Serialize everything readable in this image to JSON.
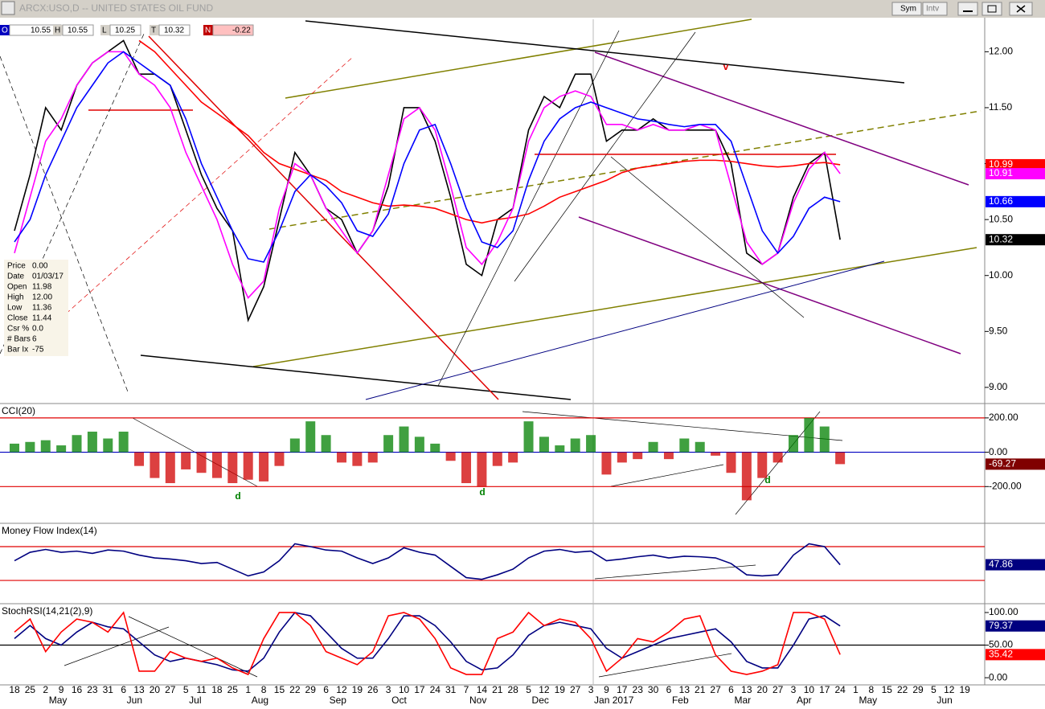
{
  "window": {
    "buttons": [
      "Sym",
      "Intv"
    ]
  },
  "quote": [
    [
      "O",
      "10.55"
    ],
    [
      "H",
      "10.55"
    ],
    [
      "L",
      "10.25"
    ],
    [
      "T",
      "10.32"
    ],
    [
      "N",
      "-0.22"
    ]
  ],
  "data_window": [
    [
      "Price",
      "0.00"
    ],
    [
      "Date",
      "01/03/17"
    ],
    [
      "Open",
      "11.98"
    ],
    [
      "High",
      "12.00"
    ],
    [
      "Low",
      "11.36"
    ],
    [
      "Close",
      "11.44"
    ],
    [
      "Csr %",
      "0.0"
    ],
    [
      "# Bars",
      "6"
    ],
    [
      "Bar Ix",
      "-75"
    ]
  ],
  "chart_data": [
    {
      "type": "line",
      "title": "ARCX:USO,D -- UNITED STATES OIL FUND",
      "categories": [
        "18",
        "25",
        "2",
        "9",
        "16",
        "23",
        "31",
        "6",
        "13",
        "20",
        "27",
        "5",
        "11",
        "18",
        "25",
        "1",
        "8",
        "15",
        "22",
        "29",
        "6",
        "12",
        "19",
        "26",
        "3",
        "10",
        "17",
        "24",
        "31",
        "7",
        "14",
        "21",
        "28",
        "5",
        "12",
        "19",
        "27",
        "3",
        "9",
        "17",
        "23",
        "30",
        "6",
        "13",
        "21",
        "27",
        "6",
        "13",
        "20",
        "27",
        "3",
        "10",
        "17",
        "24",
        "1",
        "8",
        "15",
        "22",
        "29",
        "5",
        "12",
        "19"
      ],
      "month_labels": [
        null,
        null,
        "May",
        null,
        null,
        null,
        null,
        "Jun",
        null,
        null,
        null,
        "Jul",
        null,
        null,
        null,
        "Aug",
        null,
        null,
        null,
        null,
        "Sep",
        null,
        null,
        null,
        "Oct",
        null,
        null,
        null,
        null,
        "Nov",
        null,
        null,
        null,
        "Dec",
        null,
        null,
        null,
        "Jan 2017",
        null,
        null,
        null,
        null,
        "Feb",
        null,
        null,
        null,
        "Mar",
        null,
        null,
        null,
        "Apr",
        null,
        null,
        null,
        "May",
        null,
        null,
        null,
        null,
        "Jun",
        null,
        null
      ],
      "ylim": [
        8.87,
        12.29
      ],
      "yticks": [
        {
          "value": 12,
          "label": "12.00"
        },
        {
          "value": 11.5,
          "label": "11.50"
        },
        {
          "value": 11,
          "label": "11.00"
        },
        {
          "value": 10.5,
          "label": "10.50"
        },
        {
          "value": 10,
          "label": "10.00"
        },
        {
          "value": 9.5,
          "label": "9.50"
        },
        {
          "value": 9,
          "label": "9.00"
        }
      ],
      "annotations": [
        "v"
      ],
      "series": [
        {
          "color": "#000000",
          "values": [
            10.4,
            10.9,
            11.5,
            11.3,
            11.7,
            11.9,
            12.0,
            12.1,
            11.8,
            11.8,
            11.7,
            11.3,
            10.9,
            10.6,
            10.4,
            9.6,
            9.9,
            10.5,
            11.1,
            10.9,
            10.6,
            10.5,
            10.2,
            10.4,
            10.8,
            11.5,
            11.5,
            11.2,
            10.7,
            10.1,
            10.0,
            10.5,
            10.6,
            11.3,
            11.6,
            11.5,
            11.8,
            11.8,
            11.2,
            11.3,
            11.3,
            11.4,
            11.3,
            11.3,
            11.3,
            11.3,
            11.0,
            10.2,
            10.1,
            10.2,
            10.7,
            11.0,
            11.1,
            10.32,
            null,
            null,
            null,
            null,
            null,
            null,
            null,
            null
          ]
        },
        {
          "color": "#ff0000",
          "values": [
            null,
            null,
            null,
            null,
            null,
            null,
            null,
            null,
            12.1,
            12.0,
            11.85,
            11.7,
            11.55,
            11.45,
            11.35,
            11.25,
            11.1,
            11.0,
            10.95,
            10.9,
            10.85,
            10.75,
            10.7,
            10.65,
            10.62,
            10.63,
            10.62,
            10.6,
            10.55,
            10.5,
            10.47,
            10.5,
            10.52,
            10.55,
            10.62,
            10.7,
            10.75,
            10.8,
            10.85,
            10.92,
            10.96,
            10.98,
            11.0,
            11.02,
            11.03,
            11.03,
            11.02,
            11.0,
            10.98,
            10.97,
            10.98,
            11.0,
            11.01,
            10.99,
            null,
            null,
            null,
            null,
            null,
            null,
            null,
            null
          ]
        },
        {
          "color": "#ff00ff",
          "values": [
            10.2,
            10.7,
            11.2,
            11.4,
            11.7,
            11.9,
            12.0,
            12.0,
            11.8,
            11.7,
            11.5,
            11.1,
            10.8,
            10.5,
            10.1,
            9.8,
            9.95,
            10.6,
            11.0,
            10.9,
            10.6,
            10.4,
            10.2,
            10.4,
            10.9,
            11.4,
            11.5,
            11.3,
            10.8,
            10.25,
            10.1,
            10.3,
            10.6,
            11.2,
            11.5,
            11.6,
            11.65,
            11.6,
            11.35,
            11.35,
            11.3,
            11.35,
            11.3,
            11.3,
            11.35,
            11.3,
            10.8,
            10.3,
            10.1,
            10.2,
            10.65,
            10.95,
            11.1,
            10.91,
            null,
            null,
            null,
            null,
            null,
            null,
            null,
            null
          ]
        },
        {
          "color": "#0000ff",
          "values": [
            10.3,
            10.5,
            10.9,
            11.2,
            11.5,
            11.7,
            11.9,
            12.0,
            11.9,
            11.8,
            11.7,
            11.4,
            11.0,
            10.7,
            10.4,
            10.15,
            10.12,
            10.4,
            10.75,
            10.9,
            10.8,
            10.65,
            10.4,
            10.35,
            10.55,
            11.0,
            11.3,
            11.35,
            11.0,
            10.6,
            10.3,
            10.25,
            10.4,
            10.85,
            11.2,
            11.4,
            11.5,
            11.55,
            11.5,
            11.45,
            11.4,
            11.38,
            11.35,
            11.33,
            11.35,
            11.35,
            11.2,
            10.8,
            10.4,
            10.2,
            10.35,
            10.6,
            10.7,
            10.66,
            null,
            null,
            null,
            null,
            null,
            null,
            null,
            null
          ]
        }
      ]
    },
    {
      "type": "bar",
      "title": "CCI(20)",
      "ylim": [
        -400,
        265
      ],
      "yticks": [
        {
          "value": 200,
          "label": "200.00"
        },
        {
          "value": 0,
          "label": "0.00"
        },
        {
          "value": -200,
          "label": "-200.00"
        }
      ],
      "ref_lines": [
        {
          "value": 200,
          "color": "#e00000"
        },
        {
          "value": 0,
          "color": "#0000c0"
        },
        {
          "value": -200,
          "color": "#e00000"
        }
      ],
      "annotations": [
        "d",
        "d",
        "d"
      ],
      "series": [
        {
          "color": "#008000",
          "negative_color": "#d00000",
          "box_color": "#800000",
          "values": [
            50,
            60,
            70,
            40,
            100,
            120,
            80,
            120,
            -80,
            -150,
            -180,
            -100,
            -120,
            -150,
            -180,
            -160,
            -170,
            -80,
            80,
            180,
            100,
            -60,
            -80,
            -60,
            100,
            150,
            90,
            50,
            -50,
            -180,
            -200,
            -80,
            -60,
            180,
            90,
            40,
            80,
            100,
            -130,
            -60,
            -40,
            60,
            -40,
            80,
            60,
            -20,
            -120,
            -280,
            -150,
            -60,
            100,
            200,
            150,
            -69.27,
            null,
            null,
            null,
            null,
            null,
            null,
            null,
            null
          ]
        }
      ]
    },
    {
      "type": "line",
      "title": "Money Flow Index(14)",
      "ylim": [
        -17,
        115.7
      ],
      "ref_lines": [
        {
          "value": 80,
          "color": "#e00000"
        },
        {
          "value": 20,
          "color": "#e00000"
        }
      ],
      "series": [
        {
          "color": "#000080",
          "values": [
            55,
            70,
            75,
            70,
            72,
            68,
            74,
            72,
            65,
            60,
            58,
            55,
            50,
            52,
            40,
            28,
            35,
            55,
            85,
            80,
            74,
            72,
            60,
            50,
            60,
            78,
            70,
            65,
            45,
            25,
            22,
            30,
            40,
            60,
            72,
            75,
            70,
            72,
            55,
            58,
            62,
            65,
            60,
            63,
            62,
            60,
            50,
            30,
            28,
            30,
            65,
            85,
            80,
            47.86,
            null,
            null,
            null,
            null,
            null,
            null,
            null,
            null
          ]
        }
      ]
    },
    {
      "type": "line",
      "title": "StochRSI(14,21(2),9)",
      "ylim": [
        -11,
        108.6
      ],
      "yticks": [
        {
          "value": 100,
          "label": "100.00"
        },
        {
          "value": 50,
          "label": "50.00"
        },
        {
          "value": 0,
          "label": "0.00"
        }
      ],
      "ref_lines": [
        {
          "value": 50,
          "color": "#000000"
        }
      ],
      "series": [
        {
          "color": "#000080",
          "values": [
            60,
            80,
            60,
            50,
            70,
            85,
            78,
            75,
            55,
            35,
            25,
            30,
            25,
            20,
            12,
            10,
            30,
            70,
            100,
            95,
            70,
            45,
            30,
            30,
            60,
            95,
            95,
            80,
            55,
            25,
            12,
            15,
            35,
            65,
            80,
            85,
            80,
            75,
            45,
            30,
            40,
            50,
            60,
            65,
            70,
            75,
            55,
            25,
            15,
            15,
            50,
            90,
            95,
            79.37,
            null,
            null,
            null,
            null,
            null,
            null,
            null,
            null
          ]
        },
        {
          "color": "#ff0000",
          "values": [
            70,
            90,
            40,
            70,
            90,
            85,
            70,
            100,
            10,
            10,
            40,
            30,
            25,
            30,
            15,
            5,
            60,
            100,
            100,
            80,
            40,
            30,
            20,
            40,
            95,
            100,
            90,
            60,
            15,
            5,
            5,
            60,
            70,
            100,
            80,
            90,
            85,
            60,
            10,
            30,
            60,
            55,
            70,
            90,
            95,
            35,
            10,
            5,
            10,
            20,
            100,
            100,
            90,
            35.42,
            null,
            null,
            null,
            null,
            null,
            null,
            null,
            null
          ]
        }
      ]
    }
  ]
}
